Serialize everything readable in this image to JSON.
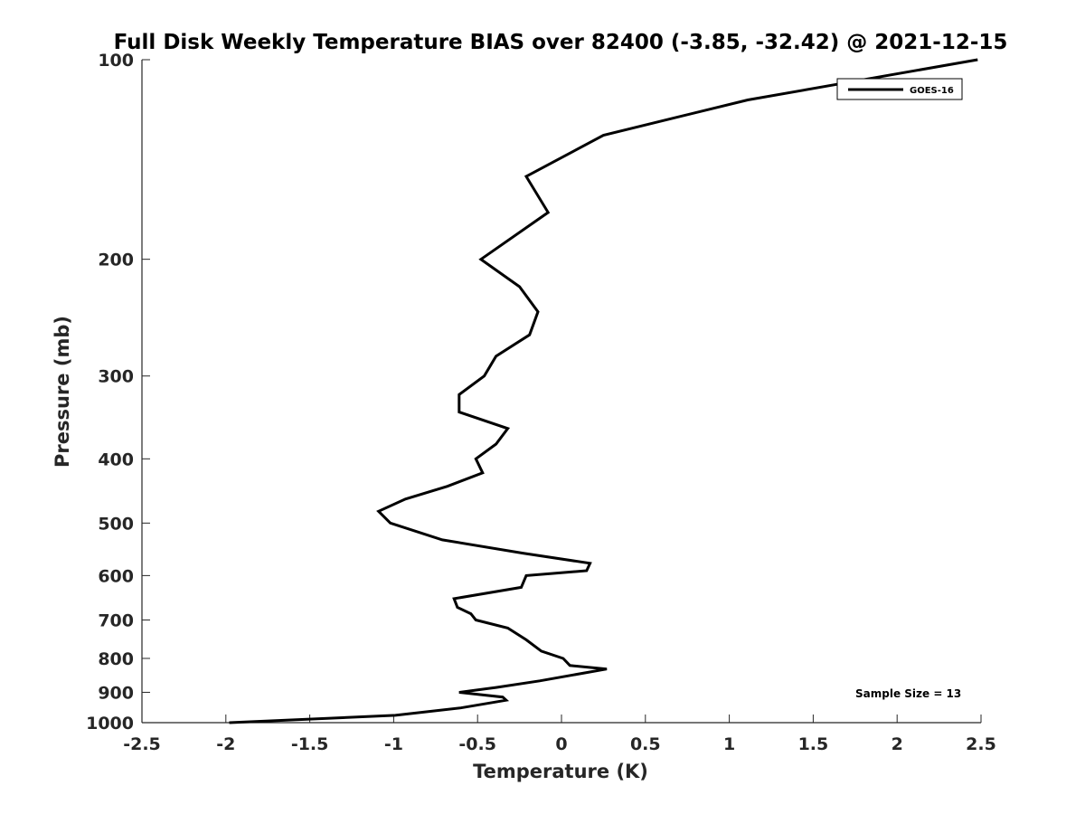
{
  "chart_data": {
    "type": "line",
    "title": "Full Disk Weekly Temperature BIAS over 82400 (-3.85, -32.42) @ 2021-12-15",
    "xlabel": "Temperature (K)",
    "ylabel": "Pressure (mb)",
    "xlim": [
      -2.5,
      2.5
    ],
    "ylim": [
      1000,
      100
    ],
    "yscale": "log",
    "yreversed": true,
    "grid": false,
    "legend_position": "top-right",
    "xticks": [
      "-2.5",
      "-2",
      "-1.5",
      "-1",
      "-0.5",
      "0",
      "0.5",
      "1",
      "1.5",
      "2",
      "2.5"
    ],
    "yticks": [
      "100",
      "200",
      "300",
      "400",
      "500",
      "600",
      "700",
      "800",
      "900",
      "1000"
    ],
    "annotation": "Sample Size = 13",
    "series": [
      {
        "name": "GOES-16",
        "color": "#000000",
        "points": [
          {
            "x": 2.48,
            "p": 100
          },
          {
            "x": 1.11,
            "p": 115
          },
          {
            "x": 0.25,
            "p": 130
          },
          {
            "x": -0.21,
            "p": 150
          },
          {
            "x": -0.08,
            "p": 170
          },
          {
            "x": -0.48,
            "p": 200
          },
          {
            "x": -0.25,
            "p": 220
          },
          {
            "x": -0.14,
            "p": 240
          },
          {
            "x": -0.19,
            "p": 260
          },
          {
            "x": -0.39,
            "p": 280
          },
          {
            "x": -0.46,
            "p": 300
          },
          {
            "x": -0.61,
            "p": 320
          },
          {
            "x": -0.61,
            "p": 340
          },
          {
            "x": -0.32,
            "p": 360
          },
          {
            "x": -0.39,
            "p": 380
          },
          {
            "x": -0.51,
            "p": 400
          },
          {
            "x": -0.47,
            "p": 420
          },
          {
            "x": -0.68,
            "p": 440
          },
          {
            "x": -0.93,
            "p": 460
          },
          {
            "x": -1.09,
            "p": 480
          },
          {
            "x": -1.02,
            "p": 500
          },
          {
            "x": -0.71,
            "p": 530
          },
          {
            "x": -0.23,
            "p": 555
          },
          {
            "x": 0.17,
            "p": 575
          },
          {
            "x": 0.15,
            "p": 590
          },
          {
            "x": -0.21,
            "p": 600
          },
          {
            "x": -0.24,
            "p": 625
          },
          {
            "x": -0.64,
            "p": 650
          },
          {
            "x": -0.62,
            "p": 670
          },
          {
            "x": -0.54,
            "p": 685
          },
          {
            "x": -0.51,
            "p": 700
          },
          {
            "x": -0.32,
            "p": 720
          },
          {
            "x": -0.21,
            "p": 750
          },
          {
            "x": -0.12,
            "p": 780
          },
          {
            "x": 0.01,
            "p": 800
          },
          {
            "x": 0.05,
            "p": 820
          },
          {
            "x": 0.27,
            "p": 830
          },
          {
            "x": -0.13,
            "p": 865
          },
          {
            "x": -0.39,
            "p": 885
          },
          {
            "x": -0.61,
            "p": 900
          },
          {
            "x": -0.35,
            "p": 915
          },
          {
            "x": -0.33,
            "p": 925
          },
          {
            "x": -0.6,
            "p": 950
          },
          {
            "x": -0.99,
            "p": 975
          },
          {
            "x": -1.98,
            "p": 1000
          }
        ]
      }
    ]
  }
}
